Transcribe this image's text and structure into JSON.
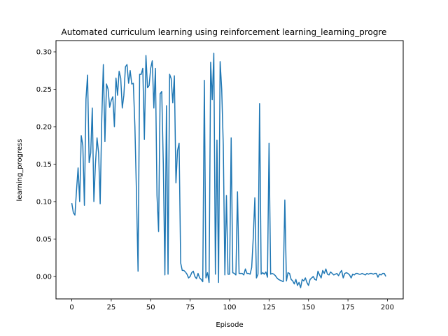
{
  "chart_data": {
    "type": "line",
    "title": "Automated curriculum learning using reinforcement learning_learning_progre",
    "xlabel": "Episode",
    "ylabel": "learning_progress",
    "xlim": [
      -10,
      210
    ],
    "ylim": [
      -0.03,
      0.315
    ],
    "xticks": [
      "0",
      "25",
      "50",
      "75",
      "100",
      "125",
      "150",
      "175",
      "200"
    ],
    "yticks": [
      "0.00",
      "0.05",
      "0.10",
      "0.15",
      "0.20",
      "0.25",
      "0.30"
    ],
    "grid": false,
    "series": [
      {
        "color": "#1f77b4",
        "x": [
          0,
          1,
          2,
          3,
          4,
          5,
          6,
          7,
          8,
          9,
          10,
          11,
          12,
          13,
          14,
          15,
          16,
          17,
          18,
          19,
          20,
          21,
          22,
          23,
          24,
          25,
          26,
          27,
          28,
          29,
          30,
          31,
          32,
          33,
          34,
          35,
          36,
          37,
          38,
          39,
          40,
          41,
          42,
          43,
          44,
          45,
          46,
          47,
          48,
          49,
          50,
          51,
          52,
          53,
          54,
          55,
          56,
          57,
          58,
          59,
          60,
          61,
          62,
          63,
          64,
          65,
          66,
          67,
          68,
          69,
          70,
          71,
          72,
          73,
          74,
          75,
          76,
          77,
          78,
          79,
          80,
          81,
          82,
          83,
          84,
          85,
          86,
          87,
          88,
          89,
          90,
          91,
          92,
          93,
          94,
          95,
          96,
          97,
          98,
          99,
          100,
          101,
          102,
          103,
          104,
          105,
          106,
          107,
          108,
          109,
          110,
          111,
          112,
          113,
          114,
          115,
          116,
          117,
          118,
          119,
          120,
          121,
          122,
          123,
          124,
          125,
          126,
          127,
          128,
          129,
          130,
          131,
          132,
          133,
          134,
          135,
          136,
          137,
          138,
          139,
          140,
          141,
          142,
          143,
          144,
          145,
          146,
          147,
          148,
          149,
          150,
          151,
          152,
          153,
          154,
          155,
          156,
          157,
          158,
          159,
          160,
          161,
          162,
          163,
          164,
          165,
          166,
          167,
          168,
          169,
          170,
          171,
          172,
          173,
          174,
          175,
          176,
          177,
          178,
          179,
          180,
          181,
          182,
          183,
          184,
          185,
          186,
          187,
          188,
          189,
          190,
          191,
          192,
          193,
          194,
          195,
          196,
          197,
          198,
          199
        ],
        "y": [
          0.098,
          0.085,
          0.082,
          0.115,
          0.145,
          0.1,
          0.188,
          0.175,
          0.095,
          0.237,
          0.269,
          0.152,
          0.165,
          0.225,
          0.1,
          0.15,
          0.185,
          0.165,
          0.097,
          0.21,
          0.283,
          0.18,
          0.257,
          0.25,
          0.226,
          0.235,
          0.24,
          0.2,
          0.265,
          0.242,
          0.274,
          0.265,
          0.225,
          0.242,
          0.28,
          0.283,
          0.258,
          0.275,
          0.257,
          0.258,
          0.2,
          0.11,
          0.007,
          0.27,
          0.27,
          0.278,
          0.183,
          0.295,
          0.252,
          0.255,
          0.278,
          0.288,
          0.225,
          0.278,
          0.108,
          0.06,
          0.244,
          0.247,
          0.15,
          0.002,
          0.228,
          0.003,
          0.27,
          0.264,
          0.232,
          0.268,
          0.125,
          0.168,
          0.178,
          0.018,
          0.008,
          0.008,
          0.006,
          0.003,
          -0.002,
          0.0,
          0.005,
          0.007,
          0.0,
          -0.003,
          0.004,
          -0.002,
          -0.004,
          -0.007,
          0.262,
          -0.002,
          0.005,
          -0.008,
          0.286,
          0.236,
          0.298,
          0.003,
          0.182,
          -0.008,
          0.287,
          0.25,
          0.175,
          0.002,
          0.108,
          0.003,
          0.003,
          0.185,
          0.005,
          0.004,
          0.002,
          0.113,
          0.004,
          0.004,
          0.004,
          0.002,
          0.01,
          0.004,
          0.004,
          0.003,
          0.012,
          0.052,
          0.105,
          -0.002,
          0.003,
          0.231,
          0.003,
          0.005,
          0.003,
          0.006,
          -0.001,
          0.178,
          0.003,
          0.004,
          0.003,
          0.001,
          -0.002,
          -0.004,
          -0.005,
          -0.006,
          -0.007,
          0.102,
          -0.006,
          0.005,
          0.004,
          -0.004,
          -0.006,
          -0.01,
          -0.004,
          -0.012,
          -0.008,
          -0.015,
          -0.004,
          -0.006,
          -0.002,
          -0.008,
          -0.012,
          -0.004,
          -0.002,
          0.0,
          -0.004,
          -0.005,
          0.007,
          0.002,
          -0.002,
          0.008,
          0.004,
          0.01,
          0.003,
          0.002,
          0.006,
          0.004,
          0.002,
          0.003,
          0.004,
          0.001,
          0.005,
          0.008,
          -0.002,
          0.004,
          0.005,
          0.004,
          0.002,
          -0.002,
          0.003,
          0.002,
          0.004,
          0.004,
          0.003,
          0.003,
          0.004,
          0.003,
          0.002,
          0.004,
          0.003,
          0.004,
          0.004,
          0.003,
          0.004,
          0.004,
          -0.001,
          0.003,
          0.002,
          0.004,
          0.004,
          0.0
        ]
      }
    ]
  }
}
